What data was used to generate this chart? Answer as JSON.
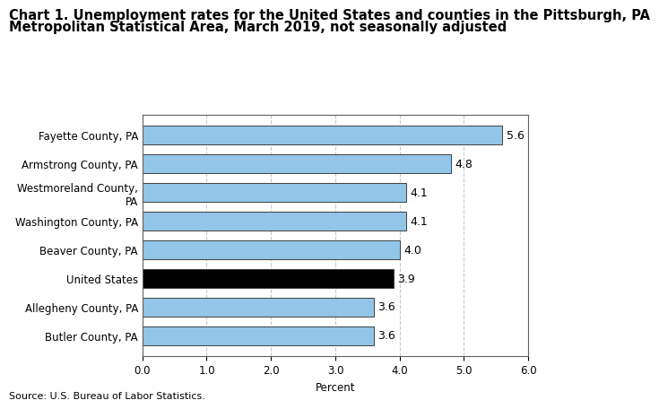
{
  "title_line1": "Chart 1. Unemployment rates for the United States and counties in the Pittsburgh, PA",
  "title_line2": "Metropolitan Statistical Area, March 2019, not seasonally adjusted",
  "categories": [
    "Butler County, PA",
    "Allegheny County, PA",
    "United States",
    "Beaver County, PA",
    "Washington County, PA",
    "Westmoreland County,\nPA",
    "Armstrong County, PA",
    "Fayette County, PA"
  ],
  "values": [
    3.6,
    3.6,
    3.9,
    4.0,
    4.1,
    4.1,
    4.8,
    5.6
  ],
  "bar_colors": [
    "#92C5E8",
    "#92C5E8",
    "#000000",
    "#92C5E8",
    "#92C5E8",
    "#92C5E8",
    "#92C5E8",
    "#92C5E8"
  ],
  "xlabel": "Percent",
  "xlim": [
    0,
    6.0
  ],
  "xticks": [
    0.0,
    1.0,
    2.0,
    3.0,
    4.0,
    5.0,
    6.0
  ],
  "source": "Source: U.S. Bureau of Labor Statistics.",
  "title_fontsize": 10.5,
  "tick_fontsize": 8.5,
  "label_fontsize": 9,
  "bar_edge_color": "#404040",
  "grid_color": "#c8c8c8",
  "background_color": "#ffffff"
}
